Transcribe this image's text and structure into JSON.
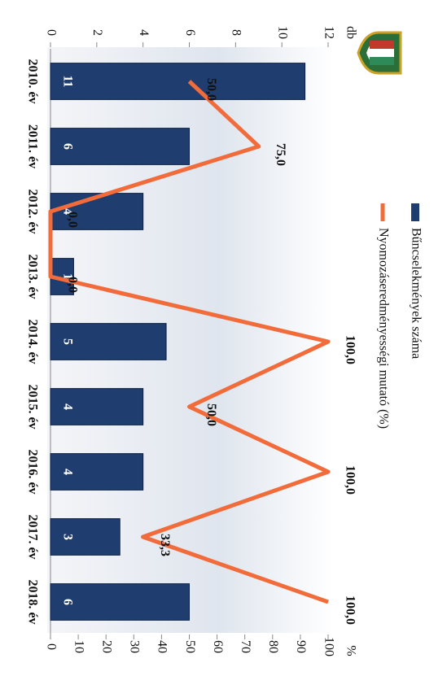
{
  "chart_data": {
    "type": "bar",
    "categories": [
      "2010. év",
      "2011. év",
      "2012. év",
      "2013. év",
      "2014. év",
      "2015. év",
      "2016. év",
      "2017. év",
      "2018. év"
    ],
    "series": [
      {
        "name": "Bűncselekmények száma",
        "type": "bar",
        "color": "#1f3d6e",
        "axis": "y",
        "values": [
          11,
          6,
          4,
          1,
          5,
          4,
          4,
          3,
          6
        ]
      },
      {
        "name": "Nyomozáseredményességi mutató (%)",
        "type": "line",
        "color": "#f26b3a",
        "axis": "y2",
        "values": [
          50,
          75,
          0,
          0,
          100,
          50,
          100,
          33.3,
          100
        ],
        "value_labels": [
          "50,0",
          "75,0",
          "0,0",
          "0,0",
          "100,0",
          "50,0",
          "100,0",
          "33,3",
          "100,0"
        ]
      }
    ],
    "y_label": "db",
    "y2_label": "%",
    "ylim": [
      0,
      12
    ],
    "yticks": [
      0,
      2,
      4,
      6,
      8,
      10,
      12
    ],
    "y2lim": [
      0,
      100
    ],
    "y2ticks": [
      0,
      10,
      20,
      30,
      40,
      50,
      60,
      70,
      80,
      90,
      100
    ]
  }
}
